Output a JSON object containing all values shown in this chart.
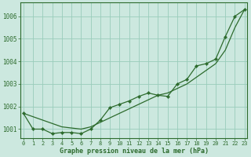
{
  "background_color": "#cce8df",
  "grid_color": "#99ccbb",
  "line_color": "#2d6b2d",
  "x_values": [
    0,
    1,
    2,
    3,
    4,
    5,
    6,
    7,
    8,
    9,
    10,
    11,
    12,
    13,
    14,
    15,
    16,
    17,
    18,
    19,
    20,
    21,
    22,
    23
  ],
  "series_marker": [
    1001.7,
    1001.0,
    1001.0,
    1000.8,
    1000.85,
    1000.85,
    1000.8,
    1001.0,
    1001.4,
    1001.95,
    1002.1,
    1002.25,
    1002.45,
    1002.6,
    1002.5,
    1002.45,
    1003.0,
    1003.2,
    1003.8,
    1003.9,
    1004.1,
    1005.1,
    1006.0,
    1006.3
  ],
  "series_smooth": [
    1001.7,
    1001.55,
    1001.4,
    1001.25,
    1001.1,
    1001.05,
    1001.0,
    1001.1,
    1001.3,
    1001.5,
    1001.7,
    1001.9,
    1002.1,
    1002.3,
    1002.5,
    1002.6,
    1002.8,
    1003.0,
    1003.3,
    1003.6,
    1003.9,
    1004.5,
    1005.5,
    1006.3
  ],
  "ylim": [
    1000.6,
    1006.6
  ],
  "yticks": [
    1001,
    1002,
    1003,
    1004,
    1005,
    1006
  ],
  "xlabel": "Graphe pression niveau de la mer (hPa)",
  "xlim": [
    -0.3,
    23.3
  ],
  "figwidth": 3.2,
  "figheight": 2.0,
  "dpi": 100
}
